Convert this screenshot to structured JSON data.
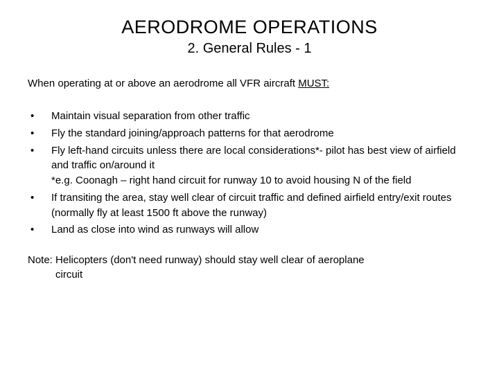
{
  "title": "AERODROME OPERATIONS",
  "subtitle": "2. General Rules - 1",
  "intro_prefix": "When operating at or above an aerodrome all VFR aircraft ",
  "intro_must": "MUST:",
  "bullets": [
    {
      "text": "Maintain visual separation from other traffic"
    },
    {
      "text": "Fly the standard joining/approach patterns for that aerodrome"
    },
    {
      "text": "Fly left-hand circuits unless there  are local considerations*- pilot has best view of airfield and traffic on/around it",
      "sub": "*e.g. Coonagh – right hand circuit for runway 10 to avoid housing N of the field"
    },
    {
      "text": "If transiting the area, stay well clear of  circuit traffic  and defined airfield entry/exit routes (normally fly at least 1500 ft above the runway)"
    },
    {
      "text": "Land as close  into wind as runways will allow"
    }
  ],
  "note_line1": "Note: Helicopters (don't need runway) should stay well clear of aeroplane",
  "note_line2": "circuit"
}
